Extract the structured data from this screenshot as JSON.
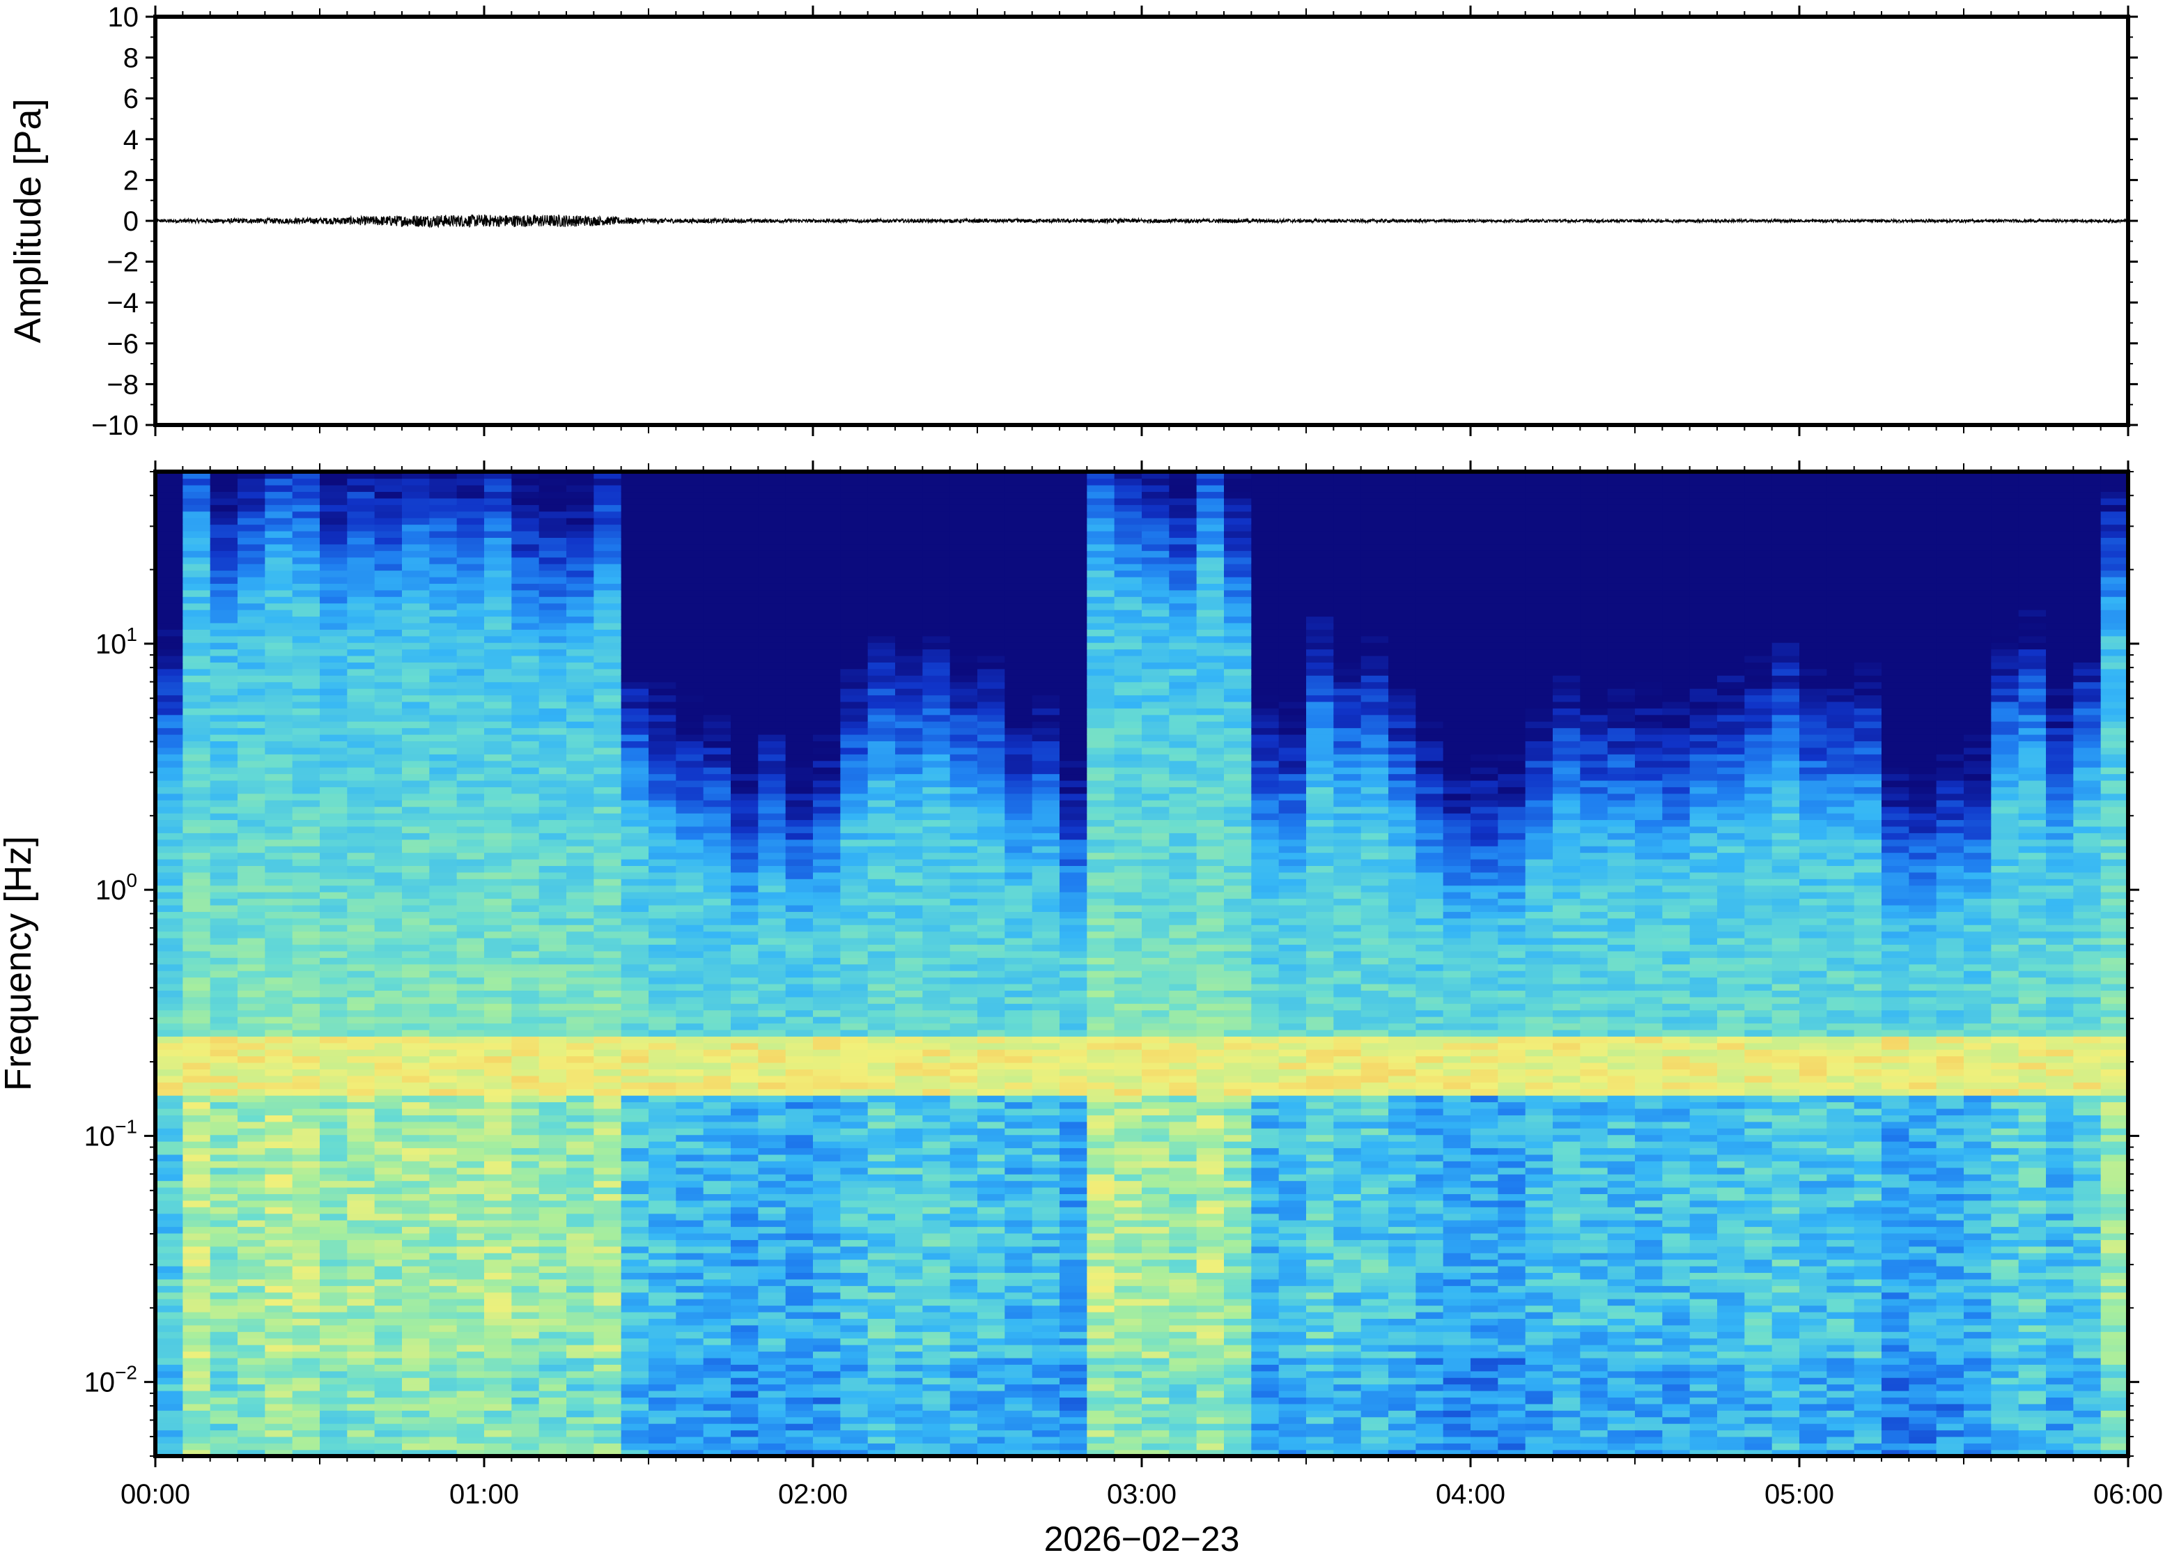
{
  "chart_data": [
    {
      "type": "line",
      "panel": "waveform",
      "ylabel": "Amplitude [Pa]",
      "ylim": [
        -10,
        10
      ],
      "yticks": [
        10,
        8,
        6,
        4,
        2,
        0,
        -2,
        -4,
        -6,
        -8,
        -10
      ],
      "ytick_labels": [
        "10",
        "8",
        "6",
        "4",
        "2",
        "0",
        "−2",
        "−4",
        "−6",
        "−8",
        "−10"
      ],
      "xlim_hours": [
        0,
        6
      ],
      "series": [
        {
          "values_abs_envelope_by_half_hour": [
            {
              "x": 0.0,
              "y": 0.08
            },
            {
              "x": 0.5,
              "y": 0.15
            },
            {
              "x": 0.8,
              "y": 0.3
            },
            {
              "x": 1.25,
              "y": 0.3
            },
            {
              "x": 1.5,
              "y": 0.12
            },
            {
              "x": 2.0,
              "y": 0.08
            },
            {
              "x": 3.0,
              "y": 0.1
            },
            {
              "x": 4.0,
              "y": 0.07
            },
            {
              "x": 5.0,
              "y": 0.07
            },
            {
              "x": 6.0,
              "y": 0.07
            }
          ],
          "color": "#000000"
        }
      ]
    },
    {
      "type": "heatmap",
      "panel": "spectrogram",
      "ylabel": "Frequency [Hz]",
      "yscale": "log",
      "ylim_hz": [
        0.005,
        50
      ],
      "ytick_labels": [
        {
          "base": "10",
          "exp": "1",
          "value": 10
        },
        {
          "base": "10",
          "exp": "0",
          "value": 1
        },
        {
          "base": "10",
          "exp": "−1",
          "value": 0.1
        },
        {
          "base": "10",
          "exp": "−2",
          "value": 0.01
        }
      ],
      "xlim_hours": [
        0,
        6
      ],
      "xtick_labels": [
        "00:00",
        "01:00",
        "02:00",
        "03:00",
        "04:00",
        "05:00",
        "06:00"
      ],
      "xlabel": "2026−02−23",
      "colormap": "jet",
      "colormap_stops": [
        "#0b0b7e",
        "#1034c8",
        "#1f7ff0",
        "#35b6f6",
        "#68dcd2",
        "#a9ee9c",
        "#f1f07a",
        "#fbb14c",
        "#f57a2e"
      ],
      "features": {
        "microbarom_band_hz": [
          0.15,
          0.25
        ],
        "high_activity_hours": [
          [
            0.05,
            1.45
          ],
          [
            2.85,
            3.35
          ],
          [
            5.93,
            6.0
          ]
        ]
      }
    }
  ]
}
